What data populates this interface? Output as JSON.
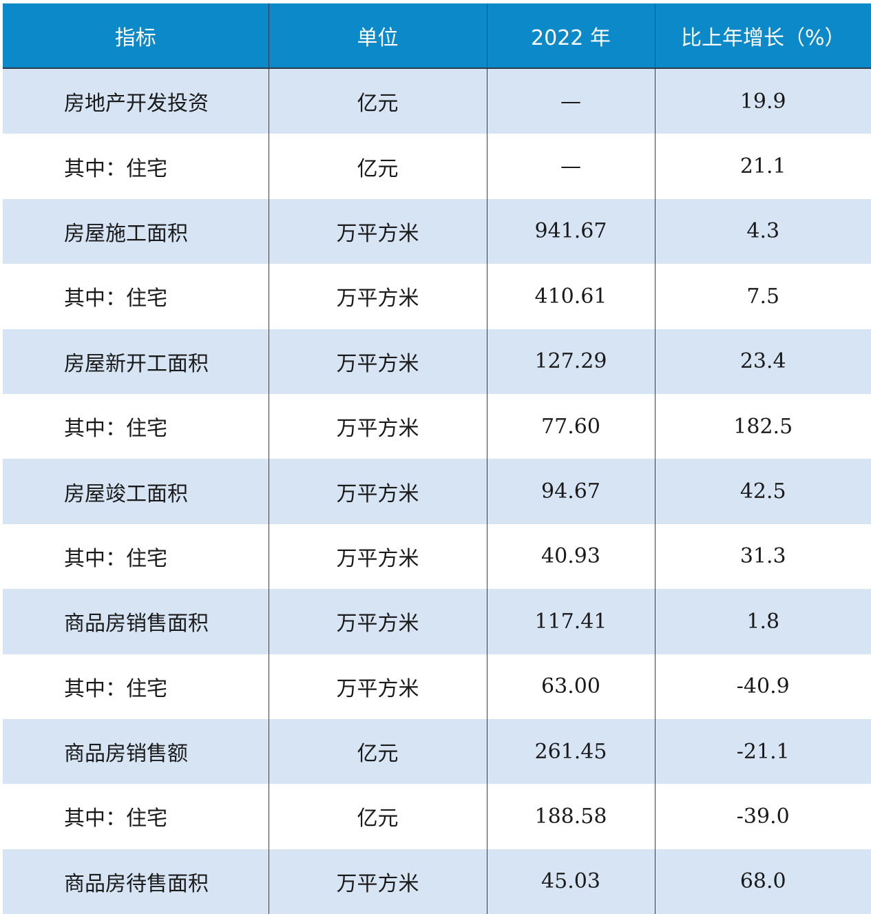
{
  "table": {
    "header": [
      "指标",
      "单位",
      "2022 年",
      "比上年增长（%）"
    ],
    "rows": [
      [
        "房地产开发投资",
        "亿元",
        "—",
        "19.9"
      ],
      [
        "其中：住宅",
        "亿元",
        "—",
        "21.1"
      ],
      [
        "房屋施工面积",
        "万平方米",
        "941.67",
        "4.3"
      ],
      [
        "其中：住宅",
        "万平方米",
        "410.61",
        "7.5"
      ],
      [
        "房屋新开工面积",
        "万平方米",
        "127.29",
        "23.4"
      ],
      [
        "其中：住宅",
        "万平方米",
        "77.60",
        "182.5"
      ],
      [
        "房屋竣工面积",
        "万平方米",
        "94.67",
        "42.5"
      ],
      [
        "其中：住宅",
        "万平方米",
        "40.93",
        "31.3"
      ],
      [
        "商品房销售面积",
        "万平方米",
        "117.41",
        "1.8"
      ],
      [
        "其中：住宅",
        "万平方米",
        "63.00",
        "-40.9"
      ],
      [
        "商品房销售额",
        "亿元",
        "261.45",
        "-21.1"
      ],
      [
        "其中：住宅",
        "亿元",
        "188.58",
        "-39.0"
      ],
      [
        "商品房待售面积",
        "万平方米",
        "45.03",
        "68.0"
      ]
    ]
  }
}
